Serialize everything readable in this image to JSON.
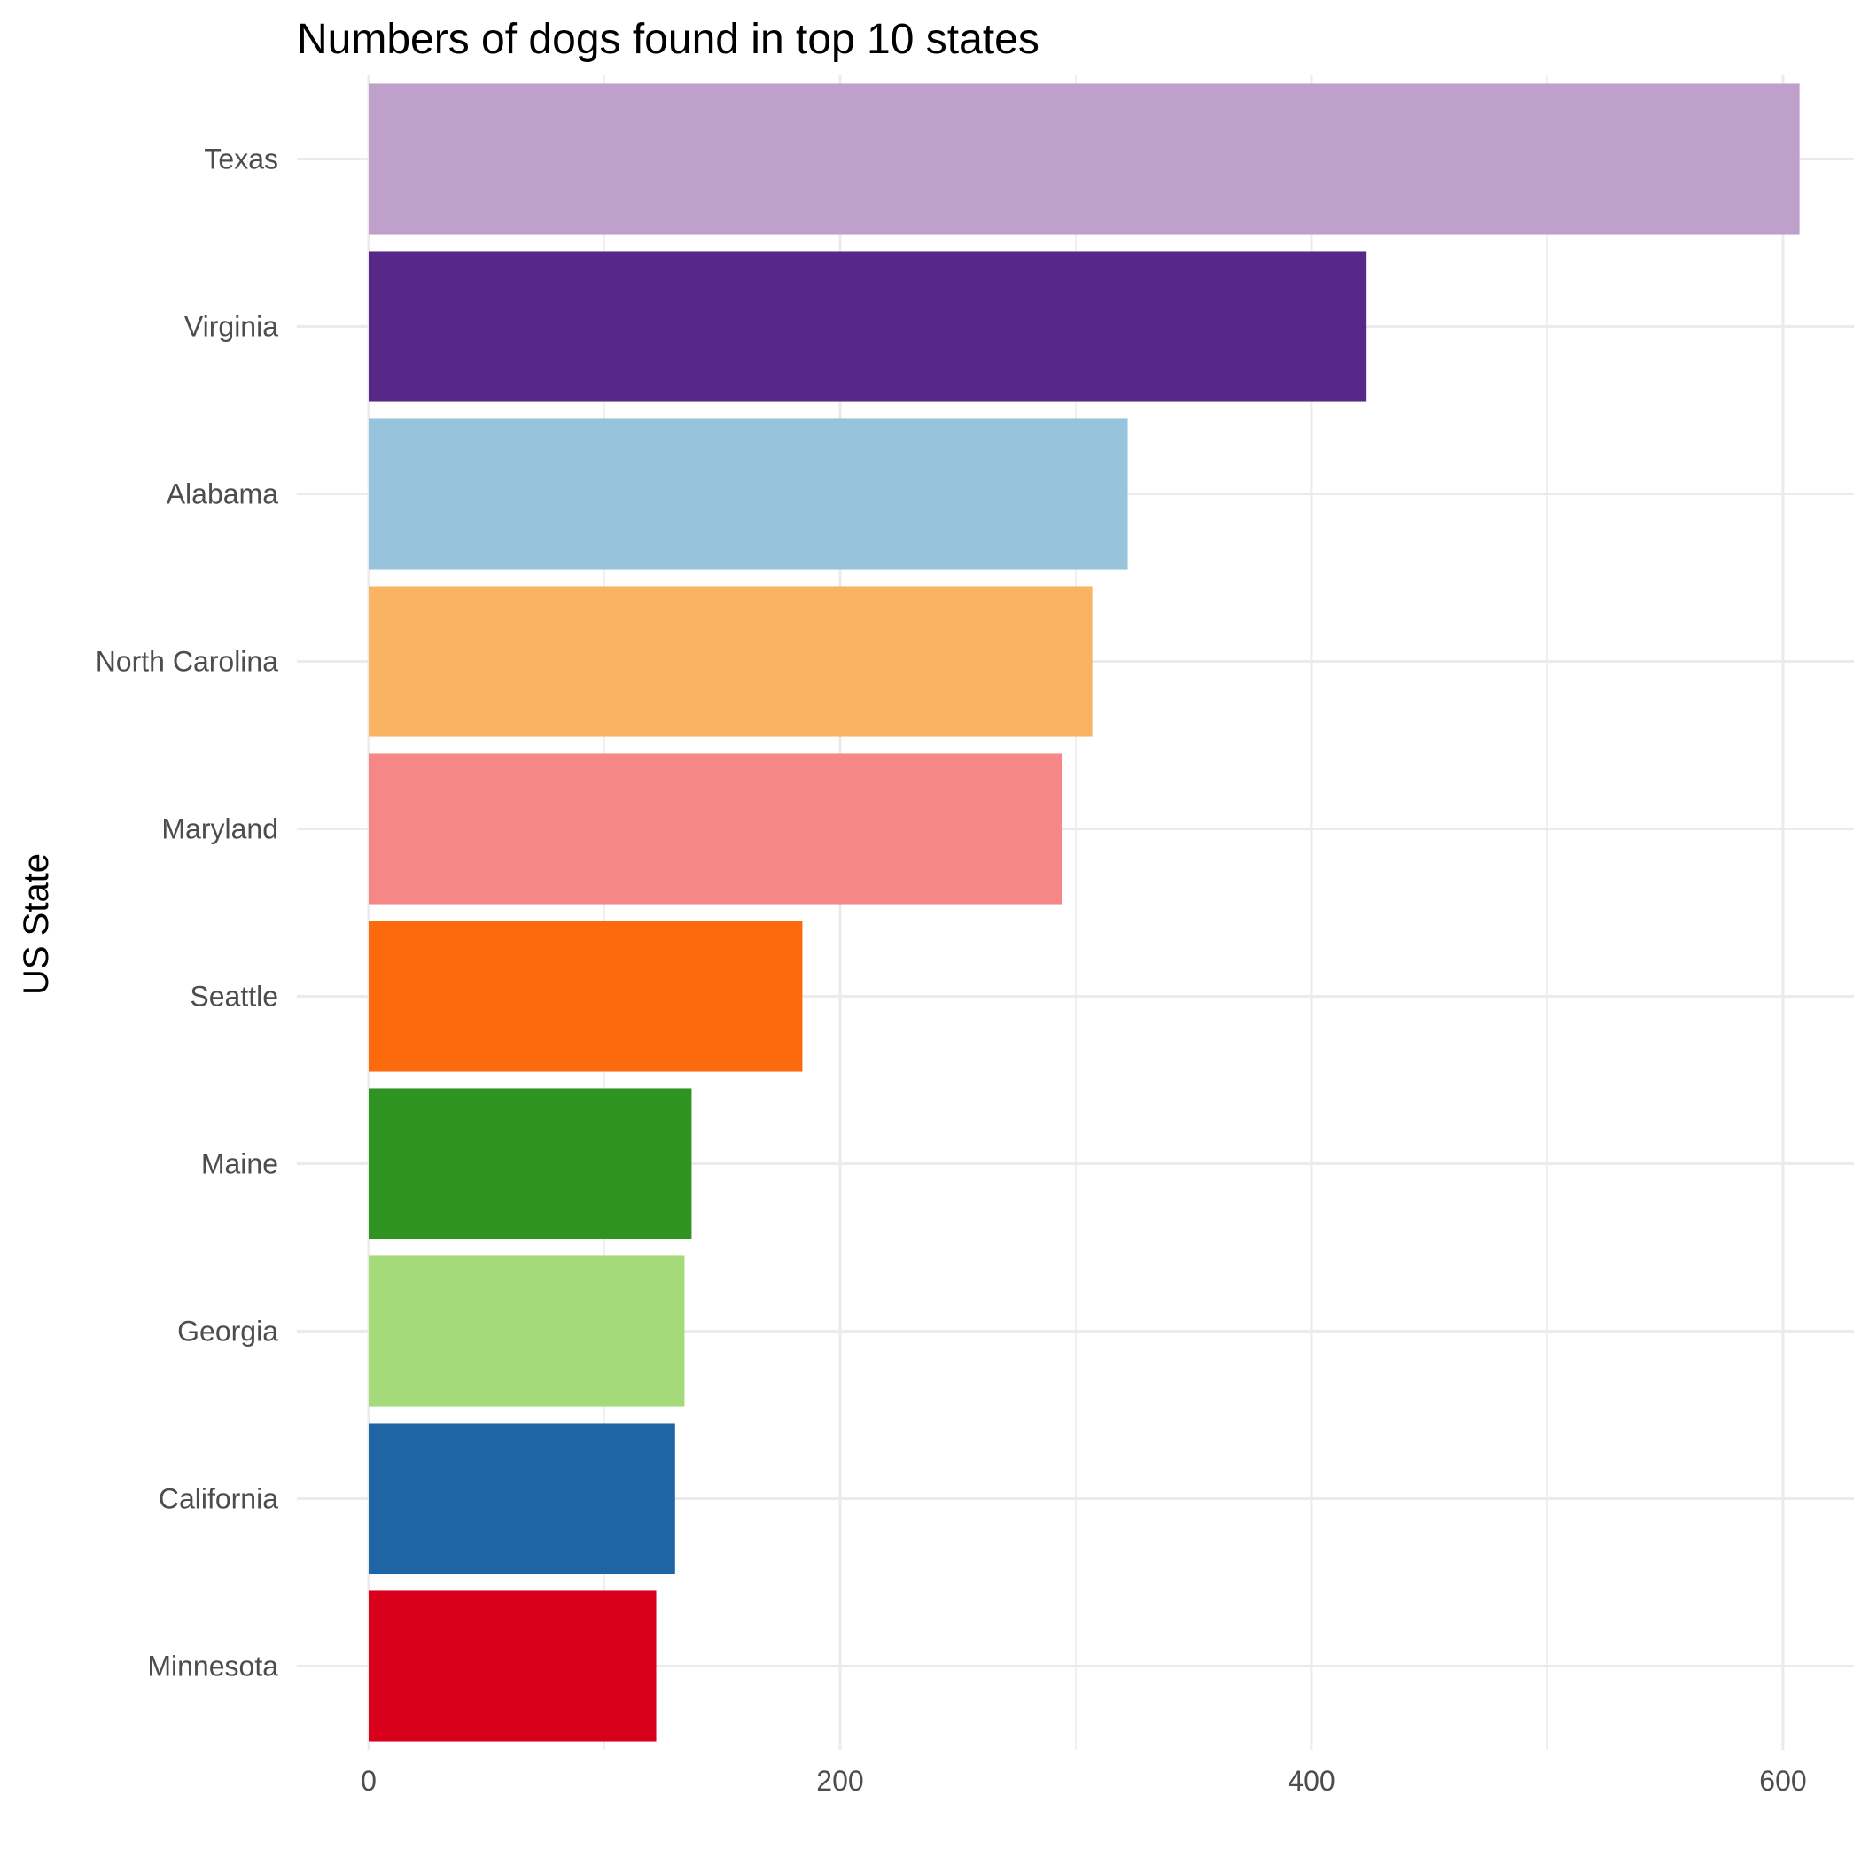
{
  "chart_data": {
    "type": "bar",
    "orientation": "horizontal",
    "title": "Numbers of dogs found in top 10 states",
    "xlabel": "",
    "ylabel": "US State",
    "categories": [
      "Texas",
      "Virginia",
      "Alabama",
      "North Carolina",
      "Maryland",
      "Seattle",
      "Maine",
      "Georgia",
      "California",
      "Minnesota"
    ],
    "values": [
      607,
      423,
      322,
      307,
      294,
      184,
      137,
      134,
      130,
      122
    ],
    "colors": [
      "#bea0cb",
      "#572888",
      "#97c3dc",
      "#fab362",
      "#f78687",
      "#fc6a0d",
      "#2e9321",
      "#a4da7a",
      "#1f65a6",
      "#d9001b"
    ],
    "xlim": [
      0,
      637
    ],
    "xticks": [
      "0",
      "200",
      "400",
      "600"
    ],
    "xtick_values": [
      0,
      200,
      400,
      600
    ],
    "grid": true,
    "legend": "none"
  }
}
